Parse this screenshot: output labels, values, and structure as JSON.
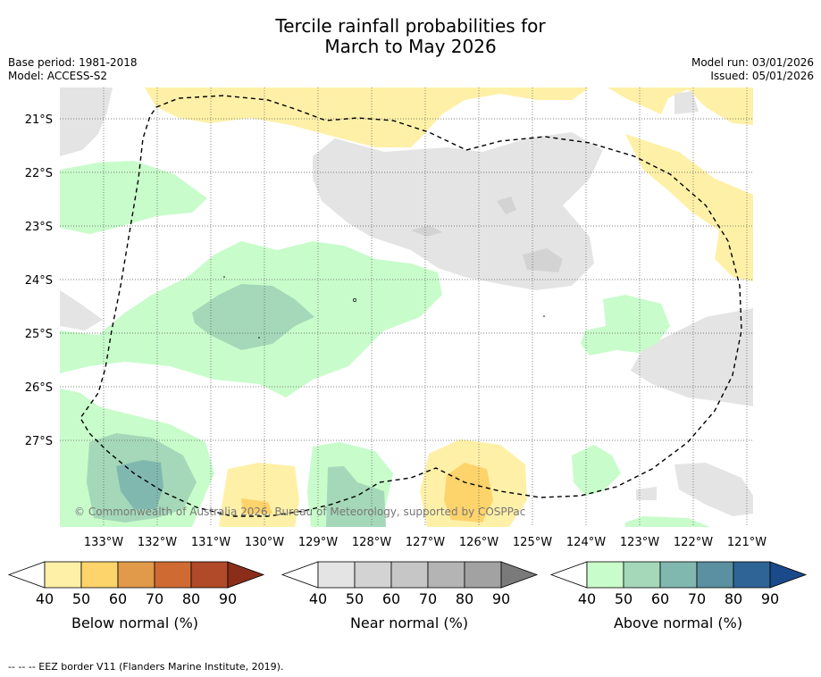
{
  "title_line1": "Tercile rainfall probabilities for",
  "title_line2": "March to May 2026",
  "meta": {
    "base_period": "Base period: 1981-2018",
    "model": "Model: ACCESS-S2",
    "model_run": "Model run: 03/01/2026",
    "issued": "Issued: 05/01/2026"
  },
  "map": {
    "lat_labels": [
      "21°S",
      "22°S",
      "23°S",
      "24°S",
      "25°S",
      "26°S",
      "27°S"
    ],
    "lon_labels": [
      "133°W",
      "132°W",
      "131°W",
      "130°W",
      "129°W",
      "128°W",
      "127°W",
      "126°W",
      "125°W",
      "124°W",
      "123°W",
      "122°W",
      "121°W"
    ],
    "copyright": "© Commonwealth of Australia 2026, Bureau of Meteorology, supported by COSPPac"
  },
  "legends": [
    {
      "label": "Below normal (%)",
      "ticks": [
        "40",
        "50",
        "60",
        "70",
        "80",
        "90"
      ],
      "colors": [
        "#fff0a8",
        "#fdd36b",
        "#e09a4a",
        "#cf6a33",
        "#b04a28",
        "#8a2e1a"
      ]
    },
    {
      "label": "Near normal (%)",
      "ticks": [
        "40",
        "50",
        "60",
        "70",
        "80",
        "90"
      ],
      "colors": [
        "#e4e4e4",
        "#d3d3d3",
        "#c6c6c6",
        "#b4b4b4",
        "#a2a2a2",
        "#7a7a7a"
      ]
    },
    {
      "label": "Above normal (%)",
      "ticks": [
        "40",
        "50",
        "60",
        "70",
        "80",
        "90"
      ],
      "colors": [
        "#c8fccb",
        "#a4d8b8",
        "#80b8b0",
        "#5a90a0",
        "#2f6496",
        "#1a4a8a"
      ]
    }
  ],
  "footnote": "--  --  -- EEZ border V11 (Flanders Marine Institute, 2019)."
}
